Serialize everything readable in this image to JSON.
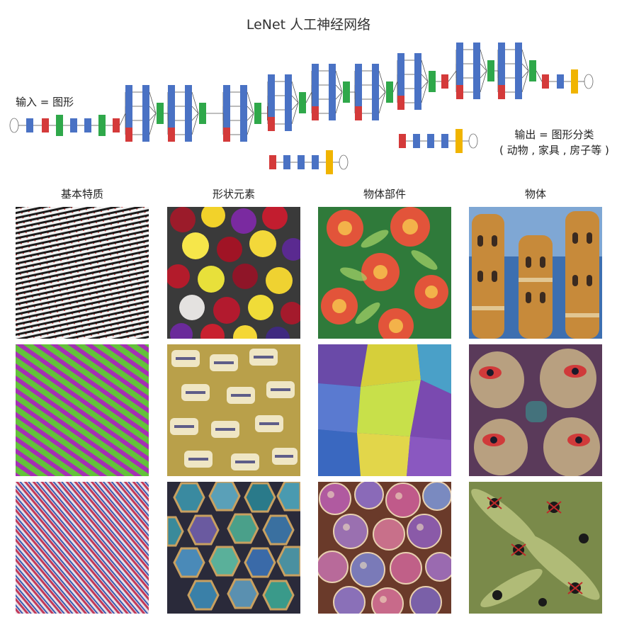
{
  "title": "LeNet 人工神经网络",
  "input_label": "输入 = 图形",
  "output_label": {
    "line1": "输出 = 图形分类",
    "line2": "( 动物 , 家具 , 房子等 )"
  },
  "colors": {
    "conv_block": "#4a72c4",
    "pool_block": "#d43a3a",
    "concat_block": "#2fa84a",
    "softmax_block": "#f0b400",
    "edge": "#555555"
  },
  "columns": [
    {
      "label": "基本特质",
      "tiles": [
        "texture-bw-stripes",
        "texture-green-magenta-stripes",
        "texture-red-blue-stripes"
      ]
    },
    {
      "label": "形状元素",
      "tiles": [
        "texture-fuzzy-balls",
        "texture-printed-labels",
        "texture-hexagon-cells"
      ]
    },
    {
      "label": "物体部件",
      "tiles": [
        "texture-flowers",
        "texture-fabric-pockets",
        "texture-bubbles"
      ]
    },
    {
      "label": "物体",
      "tiles": [
        "texture-buildings",
        "texture-faces",
        "texture-spiders"
      ]
    }
  ]
}
